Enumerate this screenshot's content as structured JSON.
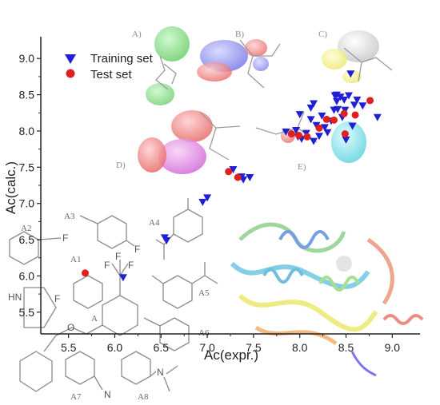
{
  "chart_data": {
    "type": "scatter",
    "xlabel": "Ac(expr.)",
    "ylabel": "Ac(calc.)",
    "xlim": [
      5.2,
      9.3
    ],
    "ylim": [
      5.2,
      9.3
    ],
    "x_ticks": [
      "5.5",
      "6.0",
      "6.5",
      "7.0",
      "7.5",
      "8.0",
      "8.5",
      "9.0"
    ],
    "y_ticks": [
      "5.5",
      "6.0",
      "6.5",
      "7.0",
      "7.5",
      "8.0",
      "8.5",
      "9.0"
    ],
    "x_tick_values": [
      5.5,
      6.0,
      6.5,
      7.0,
      7.5,
      8.0,
      8.5,
      9.0
    ],
    "y_tick_values": [
      5.5,
      6.0,
      6.5,
      7.0,
      7.5,
      8.0,
      8.5,
      9.0
    ],
    "legend_position": "top-left",
    "series": [
      {
        "name": "Training set",
        "marker": "triangle-down",
        "color": "#1f1fd6",
        "points": [
          [
            6.09,
            5.98
          ],
          [
            6.54,
            6.53
          ],
          [
            6.56,
            6.49
          ],
          [
            6.95,
            7.02
          ],
          [
            7.0,
            7.08
          ],
          [
            7.28,
            7.47
          ],
          [
            7.37,
            7.37
          ],
          [
            7.46,
            7.36
          ],
          [
            7.39,
            7.33
          ],
          [
            7.85,
            7.99
          ],
          [
            7.96,
            8.01
          ],
          [
            7.98,
            7.92
          ],
          [
            8.02,
            7.89
          ],
          [
            8.07,
            7.97
          ],
          [
            8.12,
            8.16
          ],
          [
            8.15,
            7.86
          ],
          [
            8.18,
            8.08
          ],
          [
            8.21,
            7.93
          ],
          [
            8.24,
            8.21
          ],
          [
            8.27,
            8.05
          ],
          [
            8.3,
            7.98
          ],
          [
            8.34,
            8.14
          ],
          [
            8.37,
            8.29
          ],
          [
            8.38,
            8.49
          ],
          [
            8.4,
            8.41
          ],
          [
            8.41,
            8.3
          ],
          [
            8.44,
            8.47
          ],
          [
            8.46,
            8.19
          ],
          [
            8.48,
            8.43
          ],
          [
            8.49,
            8.29
          ],
          [
            8.5,
            7.88
          ],
          [
            8.53,
            8.49
          ],
          [
            8.55,
            8.79
          ],
          [
            8.57,
            8.07
          ],
          [
            8.59,
            8.36
          ],
          [
            8.62,
            8.43
          ],
          [
            8.68,
            8.35
          ],
          [
            8.84,
            8.19
          ],
          [
            8.12,
            8.32
          ],
          [
            8.0,
            8.23
          ],
          [
            8.15,
            8.38
          ],
          [
            8.4,
            8.5
          ]
        ]
      },
      {
        "name": "Test set",
        "marker": "circle",
        "color": "#e02020",
        "points": [
          [
            5.68,
            6.04
          ],
          [
            7.23,
            7.44
          ],
          [
            7.33,
            7.36
          ],
          [
            7.91,
            7.96
          ],
          [
            7.99,
            7.94
          ],
          [
            8.08,
            7.92
          ],
          [
            8.21,
            8.04
          ],
          [
            8.29,
            8.16
          ],
          [
            8.37,
            8.15
          ],
          [
            8.49,
            7.96
          ],
          [
            8.6,
            8.22
          ],
          [
            8.76,
            8.42
          ],
          [
            8.48,
            8.24
          ]
        ]
      }
    ]
  },
  "inset_panels": {
    "contour_labels": [
      "A)",
      "B)",
      "C)",
      "D)",
      "E)"
    ],
    "fragment_labels": [
      "A1",
      "A2",
      "A3",
      "A4",
      "A5",
      "A6",
      "A7",
      "A8",
      "A"
    ],
    "atoms": {
      "fluorine": "F",
      "nitrogen": "N",
      "amine": "HN"
    }
  },
  "colors": {
    "axis": "#222222",
    "training": "#1f1fd6",
    "test": "#e02020",
    "steric_green": "#5fd35f",
    "electro_blue": "#6a6ae8",
    "electro_red": "#e85a5a",
    "grey": "#c9c9c9",
    "yellow": "#f2ee6a",
    "magenta": "#d86ad8",
    "cyan": "#5fd6e0"
  }
}
